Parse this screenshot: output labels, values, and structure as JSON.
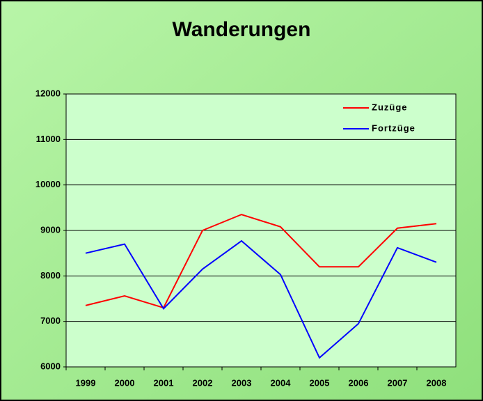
{
  "chart_data": {
    "type": "line",
    "title": "Wanderungen",
    "categories": [
      "1999",
      "2000",
      "2001",
      "2002",
      "2003",
      "2004",
      "2005",
      "2006",
      "2007",
      "2008"
    ],
    "series": [
      {
        "name": "Zuzüge",
        "color": "#ff0000",
        "values": [
          7350,
          7560,
          7300,
          9000,
          9350,
          9080,
          8200,
          8200,
          9050,
          9150
        ]
      },
      {
        "name": "Fortzüge",
        "color": "#0000ff",
        "values": [
          8500,
          8700,
          7280,
          8150,
          8770,
          8030,
          6200,
          6950,
          8620,
          8300
        ]
      }
    ],
    "ylim": [
      6000,
      12000
    ],
    "yticks": [
      6000,
      7000,
      8000,
      9000,
      10000,
      11000,
      12000
    ],
    "grid": true,
    "legend": "upper right"
  }
}
